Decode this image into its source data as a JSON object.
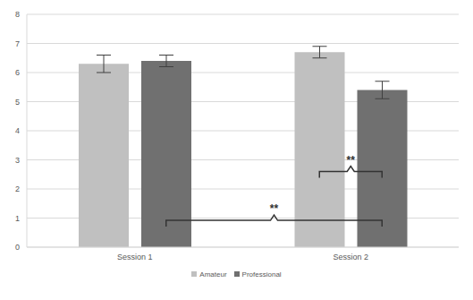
{
  "chart_data": {
    "type": "bar",
    "categories": [
      "Session 1",
      "Session 2"
    ],
    "series": [
      {
        "name": "Amateur",
        "color": "#c0c0c0",
        "values": [
          6.3,
          6.7
        ],
        "errors": [
          0.3,
          0.2
        ]
      },
      {
        "name": "Professional",
        "color": "#707070",
        "values": [
          6.4,
          5.4
        ],
        "errors": [
          0.2,
          0.3
        ]
      }
    ],
    "ylim": [
      0,
      8
    ],
    "yticks": [
      0,
      1,
      2,
      3,
      4,
      5,
      6,
      7,
      8
    ],
    "grid": true,
    "legend": "bottom",
    "annotations": [
      "**",
      "**"
    ]
  }
}
